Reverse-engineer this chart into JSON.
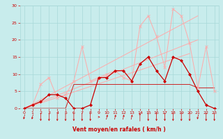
{
  "background_color": "#c8ecec",
  "grid_color": "#a8d8d8",
  "text_color": "#cc0000",
  "xlabel": "Vent moyen/en rafales ( km/h )",
  "xlim": [
    -0.5,
    23.5
  ],
  "ylim": [
    0,
    30
  ],
  "xticks": [
    0,
    1,
    2,
    3,
    4,
    5,
    6,
    7,
    8,
    9,
    10,
    11,
    12,
    13,
    14,
    15,
    16,
    17,
    18,
    19,
    20,
    21,
    22,
    23
  ],
  "yticks": [
    0,
    5,
    10,
    15,
    20,
    25,
    30
  ],
  "series_light_pink": {
    "color": "#ffaaaa",
    "lw": 0.7,
    "x": [
      0,
      1,
      2,
      3,
      4,
      5,
      6,
      7,
      8,
      9,
      10,
      11,
      12,
      13,
      14,
      15,
      16,
      17,
      18,
      19,
      20,
      21,
      22,
      23
    ],
    "y": [
      0,
      1,
      7,
      9,
      3,
      4,
      8,
      18,
      8,
      9,
      10,
      11,
      9,
      8,
      24,
      27,
      21,
      12,
      29,
      27,
      19,
      6,
      18,
      5
    ]
  },
  "series_dark_red": {
    "color": "#cc0000",
    "lw": 0.9,
    "x": [
      0,
      1,
      2,
      3,
      4,
      5,
      6,
      7,
      8,
      9,
      10,
      11,
      12,
      13,
      14,
      15,
      16,
      17,
      18,
      19,
      20,
      21,
      22,
      23
    ],
    "y": [
      0,
      1,
      2,
      4,
      4,
      3,
      0,
      0,
      1,
      9,
      9,
      11,
      11,
      8,
      13,
      15,
      11,
      8,
      15,
      14,
      10,
      5,
      1,
      0
    ]
  },
  "series_flat": {
    "color": "#cc2222",
    "lw": 0.7,
    "x": [
      0,
      5,
      6,
      7,
      8,
      9,
      10,
      11,
      12,
      13,
      14,
      15,
      16,
      17,
      18,
      19,
      20,
      21,
      22,
      23
    ],
    "y": [
      0,
      0,
      7,
      7,
      7,
      7,
      7,
      7,
      7,
      7,
      7,
      7,
      7,
      7,
      7,
      7,
      7,
      6,
      6,
      6
    ]
  },
  "trend_lines": [
    {
      "color": "#ffaaaa",
      "x": [
        0,
        20
      ],
      "y": [
        0,
        16
      ]
    },
    {
      "color": "#ffaaaa",
      "x": [
        0,
        21
      ],
      "y": [
        0,
        20
      ]
    },
    {
      "color": "#ffaaaa",
      "x": [
        0,
        21
      ],
      "y": [
        0,
        27
      ]
    }
  ],
  "arrows": {
    "x": [
      0,
      1,
      2,
      3,
      4,
      5,
      6,
      7,
      8,
      9,
      10,
      11,
      12,
      13,
      14,
      15,
      16,
      17,
      18,
      19,
      20,
      21,
      22,
      23
    ],
    "angles": [
      225,
      225,
      270,
      270,
      270,
      270,
      270,
      270,
      270,
      0,
      45,
      45,
      45,
      45,
      90,
      270,
      270,
      270,
      270,
      270,
      270,
      225,
      270,
      270
    ]
  }
}
